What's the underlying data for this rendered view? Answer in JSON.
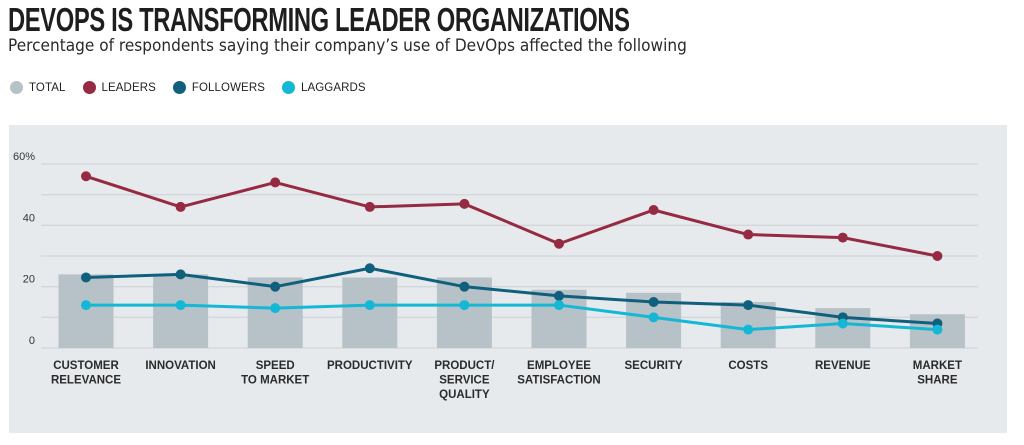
{
  "header": {
    "title": "DEVOPS IS TRANSFORMING LEADER ORGANIZATIONS",
    "subtitle": "Percentage of respondents saying their company’s use of DevOps affected the following"
  },
  "legend": [
    {
      "label": "TOTAL",
      "color": "#b7c1c8"
    },
    {
      "label": "LEADERS",
      "color": "#962a43"
    },
    {
      "label": "FOLLOWERS",
      "color": "#0f5f7d"
    },
    {
      "label": "LAGGARDS",
      "color": "#14b8d4"
    }
  ],
  "chart_data": {
    "type": "bar",
    "title": "DEVOPS IS TRANSFORMING LEADER ORGANIZATIONS",
    "subtitle": "Percentage of respondents saying their company’s use of DevOps affected the following",
    "xlabel": "",
    "ylabel": "",
    "ylim": [
      0,
      60
    ],
    "yticks": [
      0,
      10,
      20,
      30,
      40,
      50,
      60
    ],
    "ytick_labels": [
      "0",
      "",
      "20",
      "",
      "40",
      "",
      "60%"
    ],
    "grid": true,
    "legend_position": "top-left",
    "categories": [
      [
        "CUSTOMER",
        "RELEVANCE"
      ],
      [
        "INNOVATION"
      ],
      [
        "SPEED",
        "TO MARKET"
      ],
      [
        "PRODUCTIVITY"
      ],
      [
        "PRODUCT/",
        "SERVICE",
        "QUALITY"
      ],
      [
        "EMPLOYEE",
        "SATISFACTION"
      ],
      [
        "SECURITY"
      ],
      [
        "COSTS"
      ],
      [
        "REVENUE"
      ],
      [
        "MARKET",
        "SHARE"
      ]
    ],
    "series": [
      {
        "name": "TOTAL",
        "type": "bar",
        "color": "#b7c1c8",
        "values": [
          24,
          24,
          23,
          23,
          23,
          19,
          18,
          15,
          13,
          11
        ]
      },
      {
        "name": "LEADERS",
        "type": "line",
        "color": "#962a43",
        "values": [
          56,
          46,
          54,
          46,
          47,
          34,
          45,
          37,
          36,
          30
        ]
      },
      {
        "name": "FOLLOWERS",
        "type": "line",
        "color": "#0f5f7d",
        "values": [
          23,
          24,
          20,
          26,
          20,
          17,
          15,
          14,
          10,
          8
        ]
      },
      {
        "name": "LAGGARDS",
        "type": "line",
        "color": "#14b8d4",
        "values": [
          14,
          14,
          13,
          14,
          14,
          14,
          10,
          6,
          8,
          6
        ]
      }
    ]
  }
}
